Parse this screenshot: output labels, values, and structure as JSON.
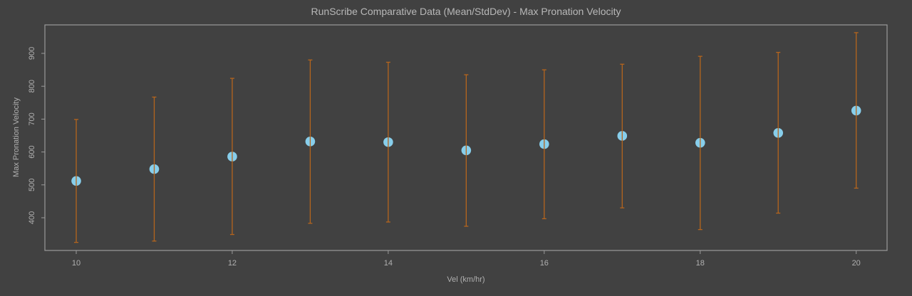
{
  "chart_data": {
    "type": "scatter",
    "title": "RunScribe Comparative Data (Mean/StdDev) - Max Pronation Velocity",
    "xlabel": "Vel (km/hr)",
    "ylabel": "Max Pronation Velocity",
    "x": [
      10,
      11,
      12,
      13,
      14,
      15,
      16,
      17,
      18,
      19,
      20
    ],
    "series": [
      {
        "name": "Mean",
        "values": [
          512,
          548,
          586,
          632,
          630,
          605,
          624,
          649,
          628,
          658,
          726
        ],
        "error_upper": [
          699,
          767,
          824,
          880,
          873,
          835,
          850,
          867,
          891,
          903,
          963
        ],
        "error_lower": [
          325,
          329,
          349,
          383,
          387,
          374,
          397,
          430,
          364,
          414,
          490
        ]
      }
    ],
    "xticks": [
      10,
      12,
      14,
      16,
      18,
      20
    ],
    "yticks": [
      400,
      500,
      600,
      700,
      800,
      900
    ],
    "xlim": [
      9.6,
      20.4
    ],
    "ylim": [
      300,
      989
    ],
    "grid": false,
    "legend": null,
    "colors": {
      "background": "#414141",
      "frame": "#9a9a9a",
      "text": "#b0b0b0",
      "point": "#87ceeb",
      "errorbar": "#b5651d"
    }
  }
}
